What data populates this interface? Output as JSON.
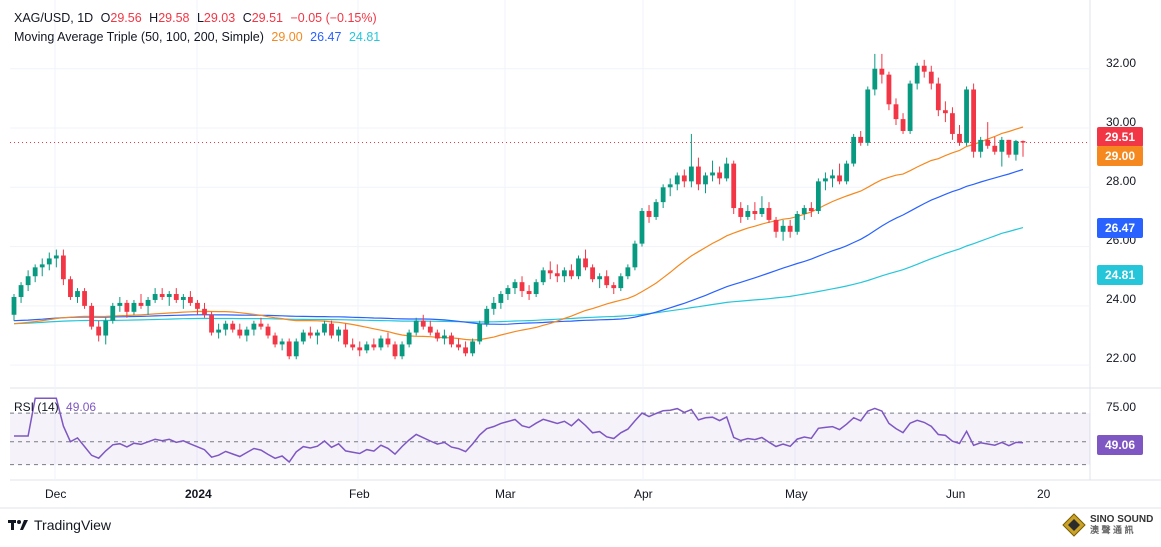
{
  "header": {
    "symbol": "XAG/USD, 1D",
    "o_label": "O",
    "o_val": "29.56",
    "h_label": "H",
    "h_val": "29.58",
    "l_label": "L",
    "l_val": "29.03",
    "c_label": "C",
    "c_val": "29.51",
    "change": "−0.05 (−0.15%)",
    "ma_label": "Moving Average Triple (50, 100, 200, Simple)",
    "ma50": "29.00",
    "ma100": "26.47",
    "ma200": "24.81"
  },
  "rsi": {
    "label": "RSI (14)",
    "value": "49.06",
    "upper": "75.00"
  },
  "price_axis": [
    "32.00",
    "30.00",
    "28.00",
    "26.00",
    "24.00",
    "22.00"
  ],
  "tags": {
    "close": "29.51",
    "ma50": "29.00",
    "ma100": "26.47",
    "ma200": "24.81",
    "rsi": "49.06"
  },
  "time_axis": [
    "Dec",
    "2024",
    "Feb",
    "Mar",
    "Apr",
    "May",
    "Jun",
    "20"
  ],
  "footer": {
    "brand": "TradingView"
  },
  "watermark": {
    "line1": "SINO SOUND",
    "line2": "澳 聲 通 訊"
  },
  "colors": {
    "up": "#089981",
    "down": "#f23645",
    "ma50": "#f5891f",
    "ma100": "#2962ff",
    "ma200": "#26c6da",
    "rsi": "#7e57c2"
  },
  "chart_data": {
    "type": "candlestick",
    "symbol": "XAG/USD",
    "interval": "1D",
    "ylim": [
      21.5,
      32.8
    ],
    "y_ticks": [
      22,
      24,
      26,
      28,
      30,
      32
    ],
    "candles": [
      [
        23.7,
        24.4,
        23.5,
        24.3
      ],
      [
        24.3,
        24.8,
        24.1,
        24.7
      ],
      [
        24.7,
        25.2,
        24.5,
        25.0
      ],
      [
        25.0,
        25.4,
        24.8,
        25.3
      ],
      [
        25.3,
        25.6,
        25.0,
        25.4
      ],
      [
        25.4,
        25.8,
        25.2,
        25.6
      ],
      [
        25.6,
        25.9,
        25.3,
        25.7
      ],
      [
        25.7,
        25.9,
        24.7,
        24.9
      ],
      [
        24.9,
        25.0,
        24.2,
        24.3
      ],
      [
        24.3,
        24.6,
        24.1,
        24.5
      ],
      [
        24.5,
        24.6,
        23.9,
        24.0
      ],
      [
        24.0,
        24.1,
        23.2,
        23.3
      ],
      [
        23.3,
        23.5,
        22.8,
        23.0
      ],
      [
        23.0,
        23.6,
        22.7,
        23.5
      ],
      [
        23.5,
        24.1,
        23.4,
        24.0
      ],
      [
        24.0,
        24.3,
        23.8,
        24.1
      ],
      [
        24.1,
        24.2,
        23.6,
        23.8
      ],
      [
        23.8,
        24.2,
        23.7,
        24.1
      ],
      [
        24.1,
        24.4,
        23.9,
        24.0
      ],
      [
        24.0,
        24.3,
        23.7,
        24.2
      ],
      [
        24.2,
        24.6,
        24.1,
        24.4
      ],
      [
        24.4,
        24.6,
        24.2,
        24.3
      ],
      [
        24.3,
        24.5,
        24.0,
        24.4
      ],
      [
        24.4,
        24.6,
        24.1,
        24.2
      ],
      [
        24.2,
        24.4,
        23.9,
        24.3
      ],
      [
        24.3,
        24.5,
        24.0,
        24.1
      ],
      [
        24.1,
        24.2,
        23.7,
        23.9
      ],
      [
        23.9,
        24.1,
        23.6,
        23.7
      ],
      [
        23.7,
        23.8,
        23.0,
        23.1
      ],
      [
        23.1,
        23.4,
        22.9,
        23.2
      ],
      [
        23.2,
        23.5,
        23.0,
        23.4
      ],
      [
        23.4,
        23.5,
        23.1,
        23.2
      ],
      [
        23.2,
        23.4,
        22.9,
        23.0
      ],
      [
        23.0,
        23.3,
        22.8,
        23.2
      ],
      [
        23.2,
        23.5,
        23.0,
        23.4
      ],
      [
        23.4,
        23.6,
        23.2,
        23.3
      ],
      [
        23.3,
        23.4,
        22.9,
        23.0
      ],
      [
        23.0,
        23.1,
        22.6,
        22.7
      ],
      [
        22.7,
        22.9,
        22.5,
        22.8
      ],
      [
        22.8,
        22.9,
        22.2,
        22.3
      ],
      [
        22.3,
        22.9,
        22.2,
        22.8
      ],
      [
        22.8,
        23.2,
        22.7,
        23.1
      ],
      [
        23.1,
        23.3,
        22.9,
        23.0
      ],
      [
        23.0,
        23.2,
        22.7,
        23.1
      ],
      [
        23.1,
        23.5,
        23.0,
        23.4
      ],
      [
        23.4,
        23.5,
        22.9,
        23.0
      ],
      [
        23.0,
        23.3,
        22.8,
        23.2
      ],
      [
        23.2,
        23.4,
        22.6,
        22.7
      ],
      [
        22.7,
        22.9,
        22.5,
        22.6
      ],
      [
        22.6,
        22.8,
        22.3,
        22.5
      ],
      [
        22.5,
        22.8,
        22.4,
        22.7
      ],
      [
        22.7,
        22.9,
        22.5,
        22.6
      ],
      [
        22.6,
        23.0,
        22.5,
        22.9
      ],
      [
        22.9,
        23.1,
        22.6,
        22.7
      ],
      [
        22.7,
        22.8,
        22.2,
        22.3
      ],
      [
        22.3,
        22.8,
        22.2,
        22.7
      ],
      [
        22.7,
        23.2,
        22.6,
        23.1
      ],
      [
        23.1,
        23.6,
        23.0,
        23.5
      ],
      [
        23.5,
        23.7,
        23.2,
        23.3
      ],
      [
        23.3,
        23.5,
        23.0,
        23.1
      ],
      [
        23.1,
        23.2,
        22.8,
        22.9
      ],
      [
        22.9,
        23.2,
        22.7,
        23.0
      ],
      [
        23.0,
        23.1,
        22.6,
        22.7
      ],
      [
        22.7,
        22.9,
        22.5,
        22.6
      ],
      [
        22.6,
        22.8,
        22.3,
        22.4
      ],
      [
        22.4,
        22.9,
        22.3,
        22.8
      ],
      [
        22.8,
        23.5,
        22.7,
        23.4
      ],
      [
        23.4,
        24.0,
        23.3,
        23.9
      ],
      [
        23.9,
        24.3,
        23.7,
        24.1
      ],
      [
        24.1,
        24.5,
        23.9,
        24.4
      ],
      [
        24.4,
        24.7,
        24.2,
        24.6
      ],
      [
        24.6,
        24.9,
        24.4,
        24.8
      ],
      [
        24.8,
        25.0,
        24.3,
        24.5
      ],
      [
        24.5,
        24.7,
        24.2,
        24.4
      ],
      [
        24.4,
        24.9,
        24.3,
        24.8
      ],
      [
        24.8,
        25.3,
        24.7,
        25.2
      ],
      [
        25.2,
        25.5,
        24.9,
        25.1
      ],
      [
        25.1,
        25.4,
        24.8,
        25.0
      ],
      [
        25.0,
        25.3,
        24.8,
        25.2
      ],
      [
        25.2,
        25.4,
        24.9,
        25.0
      ],
      [
        25.0,
        25.7,
        24.9,
        25.6
      ],
      [
        25.6,
        25.9,
        25.2,
        25.3
      ],
      [
        25.3,
        25.4,
        24.8,
        24.9
      ],
      [
        24.9,
        25.1,
        24.6,
        25.0
      ],
      [
        25.0,
        25.2,
        24.6,
        24.7
      ],
      [
        24.7,
        24.8,
        24.4,
        24.6
      ],
      [
        24.6,
        25.1,
        24.5,
        25.0
      ],
      [
        25.0,
        25.4,
        24.9,
        25.3
      ],
      [
        25.3,
        26.2,
        25.2,
        26.1
      ],
      [
        26.1,
        27.3,
        26.0,
        27.2
      ],
      [
        27.2,
        27.4,
        26.8,
        27.0
      ],
      [
        27.0,
        27.6,
        26.9,
        27.5
      ],
      [
        27.5,
        28.1,
        27.3,
        28.0
      ],
      [
        28.0,
        28.3,
        27.7,
        28.1
      ],
      [
        28.1,
        28.5,
        27.9,
        28.4
      ],
      [
        28.4,
        28.6,
        28.0,
        28.2
      ],
      [
        28.2,
        29.8,
        28.0,
        28.7
      ],
      [
        28.7,
        29.0,
        27.9,
        28.1
      ],
      [
        28.1,
        28.5,
        27.8,
        28.4
      ],
      [
        28.4,
        28.9,
        28.2,
        28.5
      ],
      [
        28.5,
        28.7,
        28.1,
        28.3
      ],
      [
        28.3,
        29.0,
        28.2,
        28.8
      ],
      [
        28.8,
        28.9,
        27.1,
        27.3
      ],
      [
        27.3,
        27.5,
        26.8,
        27.0
      ],
      [
        27.0,
        27.4,
        26.9,
        27.2
      ],
      [
        27.2,
        27.5,
        26.9,
        27.1
      ],
      [
        27.1,
        27.7,
        27.0,
        27.3
      ],
      [
        27.3,
        27.5,
        26.8,
        26.9
      ],
      [
        26.9,
        27.0,
        26.3,
        26.5
      ],
      [
        26.5,
        26.9,
        26.2,
        26.7
      ],
      [
        26.7,
        26.9,
        26.3,
        26.5
      ],
      [
        26.5,
        27.2,
        26.4,
        27.1
      ],
      [
        27.1,
        27.4,
        26.9,
        27.3
      ],
      [
        27.3,
        27.5,
        27.0,
        27.2
      ],
      [
        27.2,
        28.3,
        27.1,
        28.2
      ],
      [
        28.2,
        28.5,
        27.9,
        28.3
      ],
      [
        28.3,
        28.6,
        28.0,
        28.4
      ],
      [
        28.4,
        28.8,
        28.1,
        28.2
      ],
      [
        28.2,
        28.9,
        28.1,
        28.8
      ],
      [
        28.8,
        29.8,
        28.7,
        29.7
      ],
      [
        29.7,
        29.9,
        29.4,
        29.5
      ],
      [
        29.5,
        31.4,
        29.4,
        31.3
      ],
      [
        31.3,
        32.5,
        31.1,
        32.0
      ],
      [
        32.0,
        32.5,
        31.5,
        31.8
      ],
      [
        31.8,
        31.9,
        30.6,
        30.8
      ],
      [
        30.8,
        31.0,
        30.1,
        30.3
      ],
      [
        30.3,
        30.5,
        29.8,
        29.9
      ],
      [
        29.9,
        31.6,
        29.8,
        31.5
      ],
      [
        31.5,
        32.2,
        31.3,
        32.1
      ],
      [
        32.1,
        32.3,
        31.7,
        31.9
      ],
      [
        31.9,
        32.1,
        31.3,
        31.5
      ],
      [
        31.5,
        31.7,
        30.4,
        30.6
      ],
      [
        30.6,
        30.9,
        30.2,
        30.5
      ],
      [
        30.5,
        30.7,
        29.6,
        29.8
      ],
      [
        29.8,
        30.1,
        29.4,
        29.5
      ],
      [
        29.5,
        31.4,
        29.4,
        31.3
      ],
      [
        31.3,
        31.5,
        29.0,
        29.2
      ],
      [
        29.2,
        29.7,
        29.0,
        29.6
      ],
      [
        29.6,
        30.2,
        29.3,
        29.4
      ],
      [
        29.4,
        29.7,
        29.1,
        29.2
      ],
      [
        29.2,
        29.7,
        28.7,
        29.6
      ],
      [
        29.6,
        29.6,
        29.0,
        29.1
      ],
      [
        29.1,
        29.6,
        28.9,
        29.56
      ],
      [
        29.56,
        29.58,
        29.03,
        29.51
      ]
    ],
    "rsi": {
      "period": 14,
      "upper": 75,
      "last": 49.06
    }
  }
}
